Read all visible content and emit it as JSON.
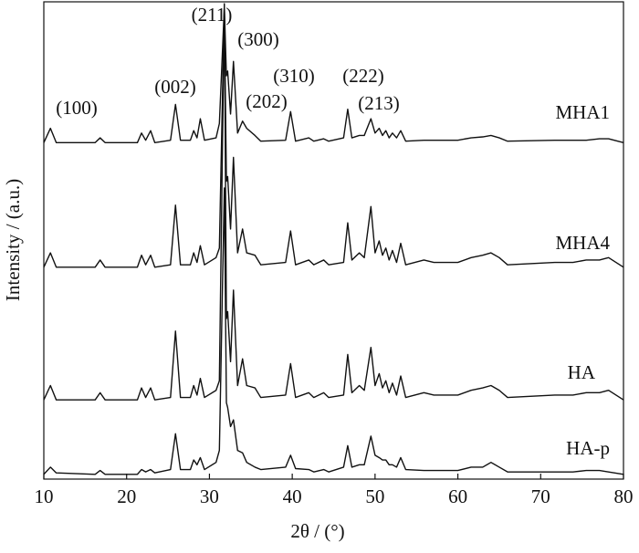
{
  "chart_data": {
    "type": "line",
    "xlabel": "2θ / (°)",
    "ylabel": "Intensity / (a.u.)",
    "xlim": [
      10,
      80
    ],
    "xticks": [
      10,
      20,
      30,
      40,
      50,
      60,
      70,
      80
    ],
    "ylim": [
      0,
      100
    ],
    "x": [
      10,
      10.8,
      11.5,
      16.2,
      16.8,
      17.4,
      21.3,
      21.8,
      22.3,
      22.9,
      23.4,
      25.3,
      25.9,
      26.5,
      27.7,
      28.1,
      28.5,
      28.9,
      29.4,
      30.8,
      31.2,
      31.8,
      32.05,
      32.2,
      32.55,
      32.9,
      33.4,
      34.0,
      34.5,
      35.5,
      36.2,
      39.2,
      39.8,
      40.4,
      42.0,
      42.6,
      43.8,
      44.4,
      46.2,
      46.7,
      47.2,
      48.1,
      48.7,
      49.5,
      50.0,
      50.5,
      50.9,
      51.3,
      51.7,
      52.1,
      52.6,
      53.1,
      53.7,
      55.9,
      57.1,
      60.0,
      61.6,
      63.0,
      64.0,
      65.0,
      66.0,
      71.7,
      73.9,
      75.5,
      77.1,
      78.2,
      80
    ],
    "series": [
      {
        "name": "MHA1",
        "color": "#111111",
        "values": [
          70.5,
          73.5,
          70.5,
          70.5,
          71.5,
          70.5,
          70.5,
          72.5,
          71,
          73,
          70.5,
          71,
          78.5,
          71,
          71,
          73,
          71.5,
          75.5,
          71,
          71.5,
          74.5,
          99,
          84.5,
          85.5,
          76.5,
          87.5,
          72.5,
          75,
          73.5,
          72,
          70.8,
          71,
          77,
          70.8,
          71.5,
          70.8,
          71.3,
          70.8,
          71.5,
          77.5,
          71.5,
          72,
          72,
          75.5,
          72.5,
          73.5,
          72,
          73,
          71.5,
          72.5,
          71.5,
          73,
          70.8,
          71,
          71,
          71,
          71.5,
          71.7,
          72,
          71.5,
          70.8,
          71,
          71,
          71,
          71.3,
          71.3,
          70.5
        ]
      },
      {
        "name": "MHA4",
        "color": "#111111",
        "values": [
          44.4,
          47.4,
          44.4,
          44.4,
          45.9,
          44.4,
          44.4,
          46.9,
          44.9,
          46.9,
          44.4,
          44.9,
          57.4,
          44.9,
          44.9,
          47.4,
          45.4,
          48.9,
          44.9,
          46.4,
          48.4,
          99.4,
          62.4,
          63.4,
          52.4,
          67.4,
          47.4,
          52.4,
          47.4,
          46.9,
          44.9,
          45.4,
          52,
          44.9,
          45.9,
          44.9,
          45.9,
          44.9,
          45.4,
          53.7,
          45.9,
          47.4,
          46.4,
          57.1,
          47.4,
          49.9,
          46.9,
          48.4,
          45.9,
          47.9,
          45.4,
          49.4,
          44.9,
          45.9,
          45.4,
          45.4,
          46.4,
          46.9,
          47.4,
          46.4,
          44.9,
          45.4,
          45.4,
          45.9,
          45.9,
          46.4,
          44.4
        ]
      },
      {
        "name": "HA",
        "color": "#111111",
        "values": [
          16.6,
          19.6,
          16.6,
          16.6,
          18.1,
          16.6,
          16.6,
          19.1,
          17.1,
          19.1,
          16.6,
          17.1,
          31,
          17.1,
          17.1,
          19.6,
          17.6,
          21.1,
          17.1,
          18.6,
          20.6,
          99.6,
          33.6,
          35.1,
          24.6,
          39.6,
          19.6,
          25.2,
          19.6,
          19.1,
          17.1,
          17.6,
          24.2,
          17.1,
          18.1,
          17.1,
          18.1,
          17.1,
          17.6,
          26.1,
          18.1,
          19.6,
          18.6,
          27.6,
          19.6,
          22.1,
          19.1,
          20.6,
          18.1,
          20.1,
          17.6,
          21.6,
          17.1,
          18.1,
          17.6,
          17.6,
          18.6,
          19.1,
          19.6,
          18.6,
          17.1,
          17.6,
          17.6,
          18.1,
          18.1,
          18.6,
          16.6
        ]
      },
      {
        "name": "HA-p",
        "color": "#111111",
        "values": [
          1,
          2.5,
          1.3,
          1,
          1.8,
          1,
          1,
          2,
          1.5,
          2,
          1.3,
          2,
          9.5,
          2,
          2,
          4,
          3,
          4.5,
          2,
          3.5,
          6,
          61,
          16,
          15,
          11,
          12.4,
          6,
          5.5,
          3.5,
          2.5,
          2,
          2.5,
          5,
          2.2,
          2,
          1.5,
          2,
          1.5,
          2.5,
          7,
          2.5,
          3,
          3,
          9,
          5,
          4.5,
          4,
          4,
          3,
          3,
          2.5,
          4.5,
          2,
          1.8,
          1.8,
          1.8,
          2.5,
          2.5,
          3.5,
          2.5,
          1.5,
          1.5,
          1.5,
          1.8,
          1.8,
          1.5,
          1
        ]
      }
    ],
    "annotations": [
      "(100)",
      "(002)",
      "(211)",
      "(300)",
      "(202)",
      "(310)",
      "(222)",
      "(213)"
    ]
  }
}
